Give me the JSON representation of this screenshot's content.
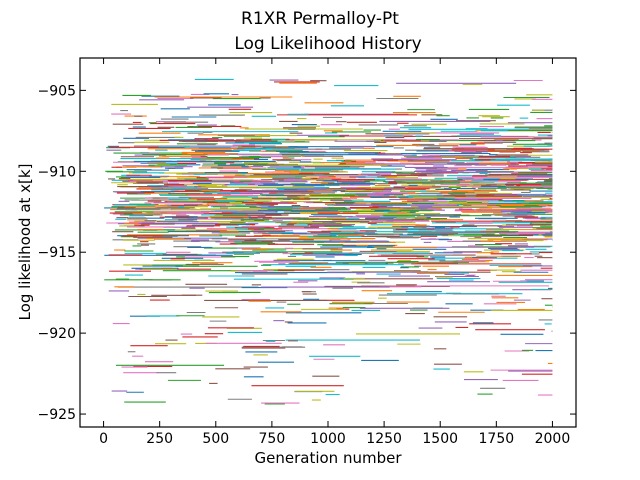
{
  "chart_data": {
    "type": "line",
    "title": "R1XR Permalloy-Pt",
    "subtitle": "Log Likelihood History",
    "xlabel": "Generation number",
    "ylabel": "Log likelihood at x[k]",
    "xlim": [
      -105,
      2105
    ],
    "ylim": [
      -925.8,
      -903.0
    ],
    "xticks": [
      0,
      250,
      500,
      750,
      1000,
      1250,
      1500,
      1750,
      2000
    ],
    "yticks": [
      -905,
      -910,
      -915,
      -920,
      -925
    ],
    "tick_direction": "in",
    "grid": false,
    "legend": "none",
    "colors": [
      "#1f77b4",
      "#ff7f0e",
      "#2ca02c",
      "#d62728",
      "#9467bd",
      "#8c564b",
      "#e377c2",
      "#7f7f7f",
      "#bcbd22",
      "#17becf"
    ],
    "series_summary": {
      "count": "many overlapping chains",
      "generation_range": [
        0,
        2000
      ],
      "dense_band": [
        -916.5,
        -906.5
      ],
      "center": -911.5,
      "extreme_min": -924.7,
      "extreme_max": -904.3
    }
  }
}
